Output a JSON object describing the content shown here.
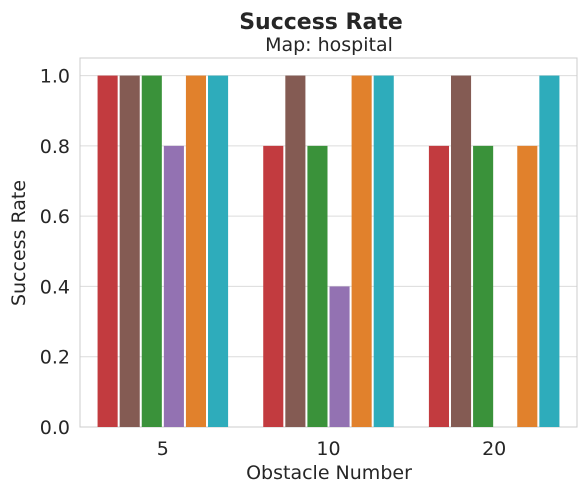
{
  "chart_data": {
    "type": "bar",
    "title": "Success Rate",
    "subtitle": "Map: hospital",
    "xlabel": "Obstacle Number",
    "ylabel": "Success Rate",
    "categories": [
      "5",
      "10",
      "20"
    ],
    "ylim": [
      0,
      1.05
    ],
    "yticks": [
      "0.0",
      "0.2",
      "0.4",
      "0.6",
      "0.8",
      "1.0"
    ],
    "grid": true,
    "legend": "none",
    "series": [
      {
        "color": "#c23b3f",
        "values": [
          1.0,
          0.8,
          0.8
        ]
      },
      {
        "color": "#845b53",
        "values": [
          1.0,
          1.0,
          1.0
        ]
      },
      {
        "color": "#3a923a",
        "values": [
          1.0,
          0.8,
          0.8
        ]
      },
      {
        "color": "#9372b2",
        "values": [
          0.8,
          0.4,
          0.0
        ]
      },
      {
        "color": "#e1812c",
        "values": [
          1.0,
          1.0,
          0.8
        ]
      },
      {
        "color": "#2eacbb",
        "values": [
          1.0,
          1.0,
          1.0
        ]
      }
    ]
  }
}
